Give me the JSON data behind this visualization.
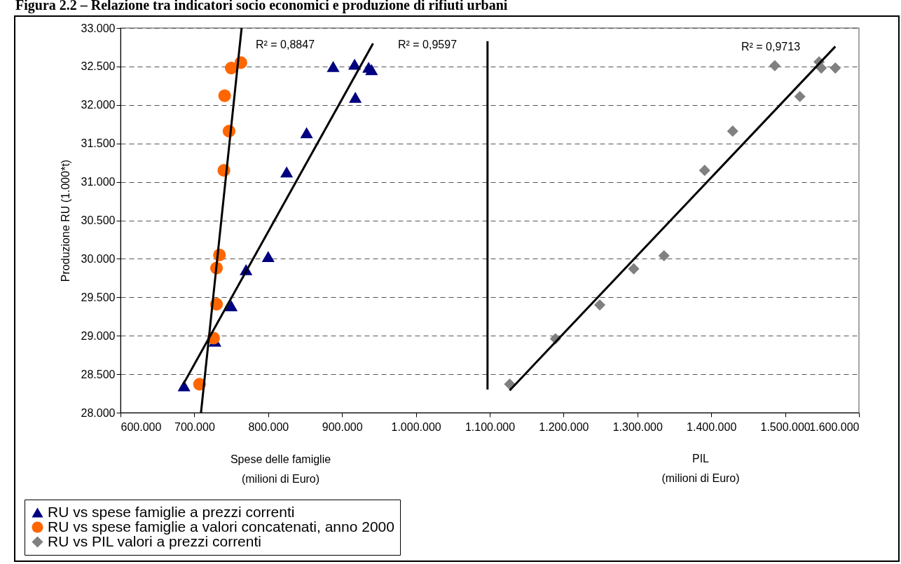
{
  "chart_data": {
    "type": "scatter",
    "title": "Figura 2.2 – Relazione tra indicatori socio economici e produzione di rifiuti urbani",
    "xlabel": "Spese delle famiglie\n(milioni di Euro)",
    "ylabel": "Produzione RU (1.000*t)",
    "xlim": [
      600000,
      1600000
    ],
    "ylim": [
      28000,
      33000
    ],
    "xticks": [
      {
        "value": 600000,
        "label": "600.000"
      },
      {
        "value": 700000,
        "label": "700.000"
      },
      {
        "value": 800000,
        "label": "800.000"
      },
      {
        "value": 900000,
        "label": "900.000"
      },
      {
        "value": 1000000,
        "label": "1.000.000"
      },
      {
        "value": 1100000,
        "label": "1.100.000"
      },
      {
        "value": 1200000,
        "label": "1.200.000"
      },
      {
        "value": 1300000,
        "label": "1.300.000"
      },
      {
        "value": 1400000,
        "label": "1.400.000"
      },
      {
        "value": 1500000,
        "label": "1.500.000"
      },
      {
        "value": 1600000,
        "label": "1.600.000"
      }
    ],
    "yticks": [
      {
        "value": 28000,
        "label": "28.000"
      },
      {
        "value": 28500,
        "label": "28.500"
      },
      {
        "value": 29000,
        "label": "29.000"
      },
      {
        "value": 29500,
        "label": "29.500"
      },
      {
        "value": 30000,
        "label": "30.000"
      },
      {
        "value": 30500,
        "label": "30.500"
      },
      {
        "value": 31000,
        "label": "31.000"
      },
      {
        "value": 31500,
        "label": "31.500"
      },
      {
        "value": 32000,
        "label": "32.000"
      },
      {
        "value": 32500,
        "label": "32.500"
      },
      {
        "value": 33000,
        "label": "33.000"
      }
    ],
    "grid": "y",
    "legend": "bottom left",
    "series": [
      {
        "name": "RU vs  spese famiglie a prezzi correnti",
        "type": "scatter",
        "marker": "triangle",
        "color": "#000080",
        "x": [
          686000,
          728000,
          750000,
          770000,
          800000,
          825000,
          852000,
          888000,
          917000,
          918000,
          936000,
          940000
        ],
        "values": [
          28350,
          28930,
          29390,
          29860,
          30030,
          31130,
          31640,
          32500,
          32530,
          32100,
          32490,
          32460
        ]
      },
      {
        "name": "RU vs spese famiglie a valori concatenati, anno 2000",
        "type": "scatter",
        "marker": "circle",
        "color": "#ff6600",
        "x": [
          707000,
          726000,
          730000,
          730000,
          734000,
          740000,
          747000,
          741000,
          750000,
          763000
        ],
        "values": [
          28370,
          28970,
          29410,
          29880,
          30050,
          31150,
          31660,
          32120,
          32480,
          32550
        ]
      },
      {
        "name": "RU vs PIL valori a prezzi correnti",
        "type": "scatter",
        "marker": "diamond",
        "color": "#808080",
        "x": [
          1127000,
          1189000,
          1249000,
          1295000,
          1336000,
          1391000,
          1429000,
          1486000,
          1520000,
          1546000,
          1549000,
          1568000
        ],
        "values": [
          28370,
          28960,
          29400,
          29870,
          30040,
          31150,
          31660,
          32510,
          32110,
          32560,
          32480,
          32480
        ]
      },
      {
        "type": "line",
        "color": "#000000",
        "x": [
          709000,
          764000
        ],
        "values": [
          28000,
          33000
        ]
      },
      {
        "type": "line",
        "color": "#000000",
        "x": [
          685000,
          942000
        ],
        "values": [
          28370,
          32800
        ]
      },
      {
        "type": "line",
        "color": "#000000",
        "x": [
          1127000,
          1568000
        ],
        "values": [
          28290,
          32760
        ]
      },
      {
        "type": "line",
        "color": "#000000",
        "x": [
          1097000,
          1097000
        ],
        "values": [
          28300,
          32830
        ]
      }
    ],
    "annotations": [
      "R² = 0,8847",
      "R² = 0,9597",
      "R² = 0,9713",
      "PIL\n(milioni di Euro)"
    ]
  }
}
